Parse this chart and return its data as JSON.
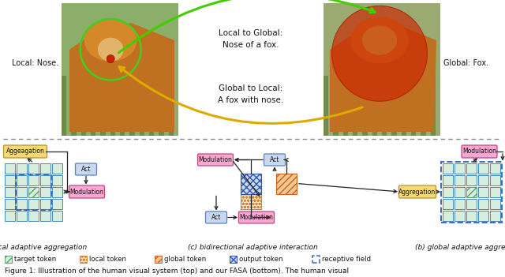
{
  "fig_width": 6.4,
  "fig_height": 3.51,
  "dpi": 100,
  "bg_color": "#ffffff",
  "colors": {
    "target_token_fill": "#d8eedd",
    "target_token_hatch": "#5a9e6f",
    "local_token_fill": "#fce8c8",
    "local_token_hatch": "#d4873a",
    "global_token_fill": "#f5c890",
    "global_token_hatch": "#c86020",
    "output_token_fill": "#c8d8ef",
    "output_token_hatch": "#3355aa",
    "receptive_field_border": "#3a6abf",
    "aggregation_fill": "#f5d878",
    "aggregation_border": "#b8942a",
    "modulation_fill": "#f5a8d0",
    "modulation_border": "#c04888",
    "act_fill": "#c8d8ef",
    "act_border": "#6080b8",
    "arrow_color": "#222222",
    "grid_border": "#4488bb",
    "grid_fill": "#d8eedd"
  },
  "bottom_labels": {
    "a": "(a) local adaptive aggregation",
    "b": "(b) global adaptive aggregation",
    "c": "(c) bidirectional adaptive interaction"
  },
  "legend_items": [
    {
      "label": "target token",
      "fill": "#d8eedd",
      "hatch": "////",
      "hatch_color": "#5a9e6f"
    },
    {
      "label": "local token",
      "fill": "#fce8c8",
      "hatch": "oooo",
      "hatch_color": "#d4873a"
    },
    {
      "label": "global token",
      "fill": "#f5c890",
      "hatch": "////",
      "hatch_color": "#c86020"
    },
    {
      "label": "output token",
      "fill": "#c8d8ef",
      "hatch": "xxxx",
      "hatch_color": "#3355aa"
    },
    {
      "label": "receptive field",
      "fill": "none",
      "hatch": "",
      "hatch_color": "#3a6abf"
    }
  ],
  "caption": "Figure 1: Illustration of the human visual system (top) and our FASA (bottom). The human visual"
}
